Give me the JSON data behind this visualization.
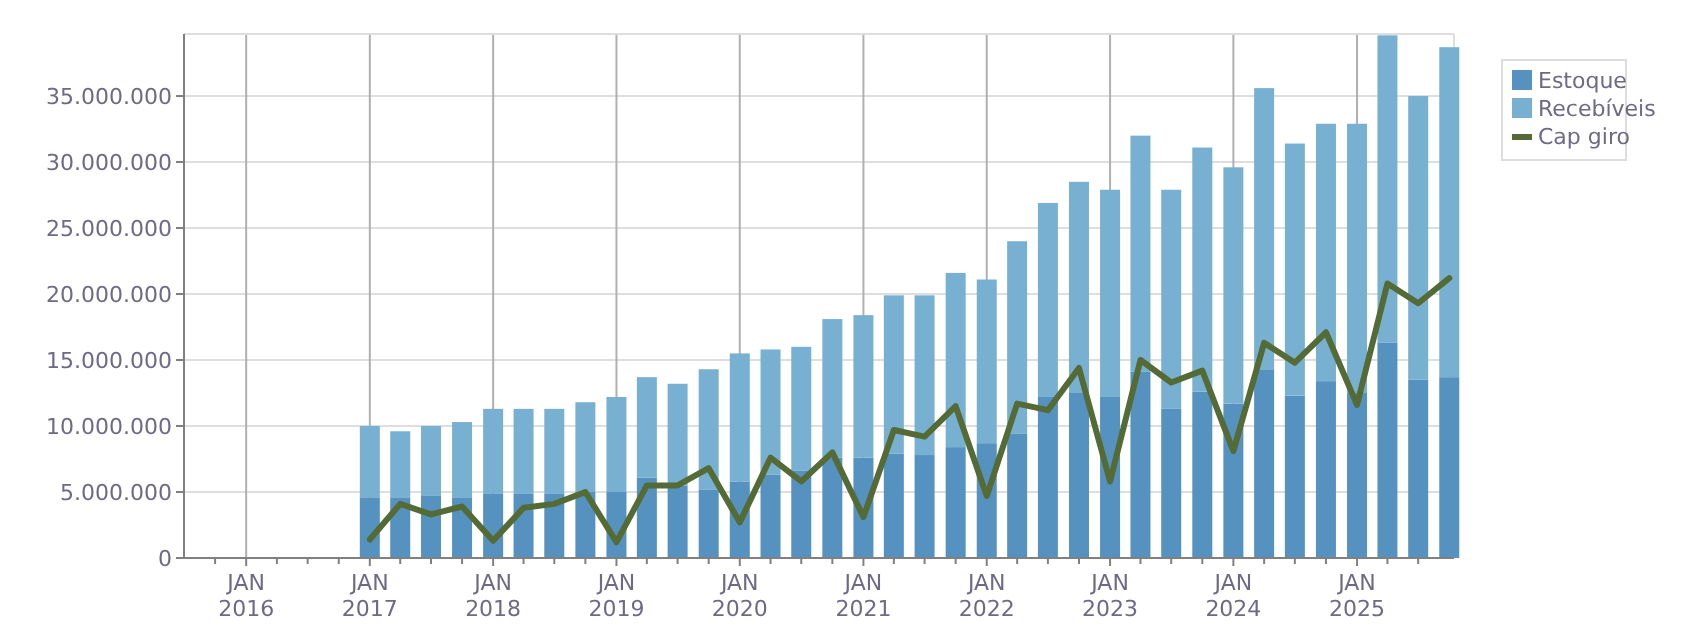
{
  "chart_data": {
    "type": "bar",
    "stacked": true,
    "x": [
      "2017-01-01",
      "2017-04-01",
      "2017-07-01",
      "2017-10-01",
      "2018-01-01",
      "2018-04-01",
      "2018-07-01",
      "2018-10-01",
      "2019-01-01",
      "2019-04-01",
      "2019-07-01",
      "2019-10-01",
      "2020-01-01",
      "2020-04-01",
      "2020-07-01",
      "2020-10-01",
      "2021-01-01",
      "2021-04-01",
      "2021-07-01",
      "2021-10-01",
      "2022-01-01",
      "2022-04-01",
      "2022-07-01",
      "2022-10-01",
      "2023-01-01",
      "2023-04-01",
      "2023-07-01",
      "2023-10-01",
      "2024-01-01",
      "2024-04-01",
      "2024-07-01",
      "2024-10-01",
      "2025-01-01",
      "2025-04-01",
      "2025-07-01",
      "2025-10-01"
    ],
    "series": [
      {
        "name": "Estoque",
        "color": "#5592bf",
        "values": [
          4600000,
          4600000,
          4700000,
          4600000,
          4900000,
          4900000,
          4900000,
          5000000,
          5000000,
          6100000,
          5500000,
          5200000,
          5800000,
          6300000,
          6600000,
          7600000,
          7600000,
          7900000,
          7800000,
          8400000,
          8700000,
          9400000,
          12200000,
          12500000,
          12200000,
          14100000,
          11300000,
          12600000,
          11700000,
          14300000,
          12300000,
          13400000,
          12500000,
          16300000,
          13500000,
          13700000
        ]
      },
      {
        "name": "Recebíveis",
        "color": "#78b0d2",
        "values": [
          5400000,
          5000000,
          5300000,
          5700000,
          6400000,
          6400000,
          6400000,
          6800000,
          7200000,
          7600000,
          7700000,
          9100000,
          9700000,
          9500000,
          9400000,
          10500000,
          10800000,
          12000000,
          12100000,
          13200000,
          12400000,
          14600000,
          14700000,
          16000000,
          15700000,
          17900000,
          16600000,
          18500000,
          17900000,
          21300000,
          19100000,
          19500000,
          20400000,
          23300000,
          21500000,
          25000000
        ]
      },
      {
        "name": "Cap giro",
        "type": "line",
        "color": "#556b35",
        "values": [
          1400000,
          4100000,
          3300000,
          3900000,
          1300000,
          3800000,
          4100000,
          5000000,
          1200000,
          5500000,
          5500000,
          6800000,
          2700000,
          7600000,
          5800000,
          8000000,
          3100000,
          9700000,
          9200000,
          11500000,
          4700000,
          11700000,
          11200000,
          14400000,
          5800000,
          15000000,
          13300000,
          14200000,
          8100000,
          16300000,
          14800000,
          17100000,
          11600000,
          20800000,
          19300000,
          21200000
        ]
      }
    ],
    "xlim": [
      "2015-07-01",
      "2025-10-15"
    ],
    "xticks": [
      {
        "value": "2015-10-01",
        "label": null
      },
      {
        "value": "2016-01-01",
        "label": "JAN\n2016"
      },
      {
        "value": "2016-04-01",
        "label": null
      },
      {
        "value": "2016-07-01",
        "label": null
      },
      {
        "value": "2016-10-01",
        "label": null
      },
      {
        "value": "2017-01-01",
        "label": "JAN\n2017"
      },
      {
        "value": "2017-04-01",
        "label": null
      },
      {
        "value": "2017-07-01",
        "label": null
      },
      {
        "value": "2017-10-01",
        "label": null
      },
      {
        "value": "2018-01-01",
        "label": "JAN\n2018"
      },
      {
        "value": "2018-04-01",
        "label": null
      },
      {
        "value": "2018-07-01",
        "label": null
      },
      {
        "value": "2018-10-01",
        "label": null
      },
      {
        "value": "2019-01-01",
        "label": "JAN\n2019"
      },
      {
        "value": "2019-04-01",
        "label": null
      },
      {
        "value": "2019-07-01",
        "label": null
      },
      {
        "value": "2019-10-01",
        "label": null
      },
      {
        "value": "2020-01-01",
        "label": "JAN\n2020"
      },
      {
        "value": "2020-04-01",
        "label": null
      },
      {
        "value": "2020-07-01",
        "label": null
      },
      {
        "value": "2020-10-01",
        "label": null
      },
      {
        "value": "2021-01-01",
        "label": "JAN\n2021"
      },
      {
        "value": "2021-04-01",
        "label": null
      },
      {
        "value": "2021-07-01",
        "label": null
      },
      {
        "value": "2021-10-01",
        "label": null
      },
      {
        "value": "2022-01-01",
        "label": "JAN\n2022"
      },
      {
        "value": "2022-04-01",
        "label": null
      },
      {
        "value": "2022-07-01",
        "label": null
      },
      {
        "value": "2022-10-01",
        "label": null
      },
      {
        "value": "2023-01-01",
        "label": "JAN\n2023"
      },
      {
        "value": "2023-04-01",
        "label": null
      },
      {
        "value": "2023-07-01",
        "label": null
      },
      {
        "value": "2023-10-01",
        "label": null
      },
      {
        "value": "2024-01-01",
        "label": "JAN\n2024"
      },
      {
        "value": "2024-04-01",
        "label": null
      },
      {
        "value": "2024-07-01",
        "label": null
      },
      {
        "value": "2024-10-01",
        "label": null
      },
      {
        "value": "2025-01-01",
        "label": "JAN\n2025"
      },
      {
        "value": "2025-04-01",
        "label": null
      },
      {
        "value": "2025-07-01",
        "label": null
      }
    ],
    "ylim": [
      0,
      39700000
    ],
    "yticks": [
      0,
      {
        "value": 5000000,
        "label": "5.000.000"
      },
      {
        "value": 10000000,
        "label": "10.000.000"
      },
      {
        "value": 15000000,
        "label": "15.000.000"
      },
      {
        "value": 20000000,
        "label": "20.000.000"
      },
      {
        "value": 25000000,
        "label": "25.000.000"
      },
      {
        "value": 30000000,
        "label": "30.000.000"
      },
      {
        "value": 35000000,
        "label": "35.000.000"
      }
    ],
    "grid": true,
    "legend": "top right",
    "marker": "none",
    "line_style": "solid"
  }
}
